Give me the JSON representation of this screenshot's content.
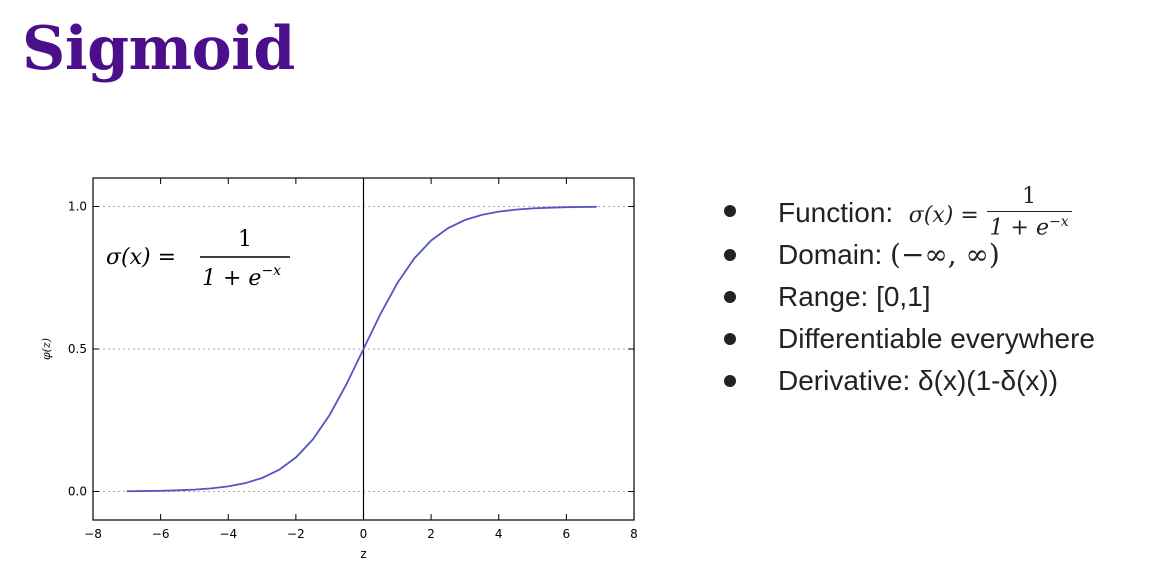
{
  "slide": {
    "title": "Sigmoid",
    "title_color": "#4b0f8c"
  },
  "bullets": {
    "function_label": "Function:",
    "function_lhs": "σ(x) =",
    "function_num": "1",
    "function_den": "1 + e",
    "function_den_exp": "−x",
    "domain_label": "Domain:",
    "domain_value": "(−∞, ∞)",
    "range_text": "Range: [0,1]",
    "differentiable_text": "Differentiable everywhere",
    "derivative_text": "Derivative: δ(x)(1-δ(x))"
  },
  "chart_data": {
    "type": "line",
    "xlabel": "z",
    "ylabel": "φ(z)",
    "xlim": [
      -8,
      8
    ],
    "ylim": [
      -0.1,
      1.1
    ],
    "xticks": [
      -8,
      -6,
      -4,
      -2,
      0,
      2,
      4,
      6,
      8
    ],
    "yticks": [
      0.0,
      0.5,
      1.0
    ],
    "ytick_labels": [
      "0.0",
      "0.5",
      "1.0"
    ],
    "grid": "dotted horizontal lines at y ticks",
    "vline_at_x": 0,
    "formula_annotation": {
      "lhs": "σ(x) =",
      "num": "1",
      "den": "1 + e",
      "den_exp": "−x"
    },
    "series": [
      {
        "color": "#5555c4",
        "x": [
          -7,
          -6.5,
          -6,
          -5.5,
          -5,
          -4.5,
          -4,
          -3.5,
          -3,
          -2.5,
          -2,
          -1.5,
          -1,
          -0.5,
          0,
          0.5,
          1,
          1.5,
          2,
          2.5,
          3,
          3.5,
          4,
          4.5,
          5,
          5.5,
          6,
          6.5,
          6.9
        ],
        "y": [
          0.0009,
          0.0015,
          0.0025,
          0.0041,
          0.0067,
          0.011,
          0.018,
          0.0293,
          0.0474,
          0.0759,
          0.1192,
          0.1824,
          0.2689,
          0.3775,
          0.5,
          0.6225,
          0.7311,
          0.8176,
          0.8808,
          0.9241,
          0.9526,
          0.9707,
          0.982,
          0.989,
          0.9933,
          0.9959,
          0.9975,
          0.9985,
          0.999
        ]
      }
    ],
    "colors": {
      "axes": "#000000",
      "grid": "#aaaaaa",
      "curve": "#5555c4"
    }
  }
}
